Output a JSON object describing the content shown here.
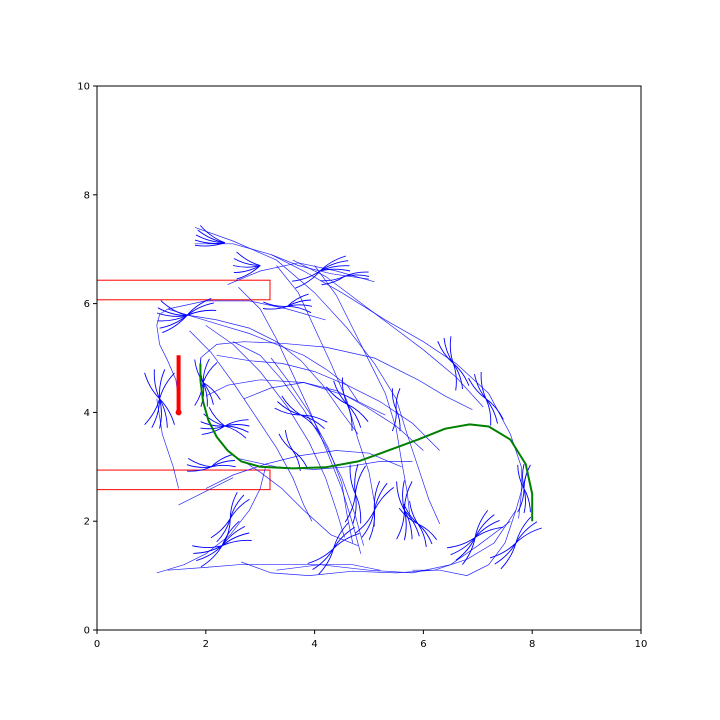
{
  "chart_data": {
    "type": "line",
    "title": "",
    "xlabel": "",
    "ylabel": "",
    "xlim": [
      0,
      10
    ],
    "ylim": [
      0,
      10
    ],
    "grid": false,
    "x_ticks": [
      0,
      2,
      4,
      6,
      8,
      10
    ],
    "y_ticks": [
      0,
      2,
      4,
      6,
      8,
      10
    ],
    "x_tick_labels": [
      "0",
      "2",
      "4",
      "6",
      "8",
      "10"
    ],
    "y_tick_labels": [
      "0",
      "2",
      "4",
      "6",
      "8",
      "10"
    ],
    "colors": {
      "tree": "#0000ff",
      "path": "#008000",
      "obstacles": "#ff0000",
      "start_marker": "#ff0000"
    },
    "obstacles": [
      {
        "x": [
          0,
          3.18
        ],
        "y": [
          6.07,
          6.43
        ]
      },
      {
        "x": [
          0,
          3.18
        ],
        "y": [
          2.58,
          2.94
        ]
      }
    ],
    "start_pose": {
      "x": 1.5,
      "y_from": 4.0,
      "y_to": 5.05
    },
    "goal_path": [
      [
        8.0,
        2.0
      ],
      [
        8.0,
        2.5
      ],
      [
        7.88,
        3.05
      ],
      [
        7.6,
        3.5
      ],
      [
        7.2,
        3.74
      ],
      [
        6.85,
        3.78
      ],
      [
        6.4,
        3.7
      ],
      [
        5.9,
        3.5
      ],
      [
        5.3,
        3.28
      ],
      [
        4.8,
        3.1
      ],
      [
        4.2,
        2.99
      ],
      [
        3.6,
        2.97
      ],
      [
        3.0,
        3.0
      ],
      [
        2.65,
        3.1
      ],
      [
        2.4,
        3.3
      ],
      [
        2.2,
        3.55
      ],
      [
        2.05,
        3.85
      ],
      [
        1.95,
        4.2
      ],
      [
        1.9,
        4.6
      ],
      [
        1.9,
        4.9
      ]
    ],
    "tree_edges": [
      [
        [
          1.5,
          4.0
        ],
        [
          1.5,
          4.2
        ],
        [
          1.45,
          4.6
        ],
        [
          1.3,
          4.95
        ],
        [
          1.15,
          5.25
        ],
        [
          1.1,
          5.6
        ],
        [
          1.15,
          5.8
        ],
        [
          1.3,
          5.9
        ]
      ],
      [
        [
          1.3,
          5.9
        ],
        [
          1.8,
          5.75
        ],
        [
          2.3,
          5.6
        ],
        [
          2.8,
          5.45
        ],
        [
          3.3,
          5.25
        ],
        [
          3.8,
          5.05
        ],
        [
          4.2,
          4.8
        ],
        [
          4.6,
          4.5
        ],
        [
          4.8,
          4.2
        ]
      ],
      [
        [
          1.3,
          5.9
        ],
        [
          2.0,
          6.05
        ],
        [
          2.8,
          6.05
        ],
        [
          3.5,
          5.9
        ],
        [
          4.2,
          5.7
        ]
      ],
      [
        [
          1.9,
          5.0
        ],
        [
          2.2,
          5.25
        ],
        [
          2.7,
          5.3
        ],
        [
          3.4,
          5.27
        ],
        [
          4.2,
          5.2
        ],
        [
          5.1,
          5.0
        ],
        [
          5.9,
          4.6
        ],
        [
          6.4,
          4.3
        ],
        [
          6.9,
          4.05
        ]
      ],
      [
        [
          2.0,
          4.3
        ],
        [
          2.4,
          4.5
        ],
        [
          3.0,
          4.6
        ],
        [
          3.8,
          4.55
        ],
        [
          4.6,
          4.3
        ],
        [
          5.3,
          3.95
        ]
      ],
      [
        [
          2.7,
          3.1
        ],
        [
          3.0,
          2.9
        ],
        [
          3.4,
          2.6
        ],
        [
          3.8,
          2.2
        ],
        [
          4.3,
          1.75
        ],
        [
          4.8,
          1.55
        ]
      ],
      [
        [
          1.1,
          4.25
        ],
        [
          1.2,
          3.6
        ],
        [
          1.4,
          3.0
        ],
        [
          1.5,
          2.6
        ]
      ],
      [
        [
          1.8,
          7.4
        ],
        [
          2.5,
          7.15
        ],
        [
          3.3,
          6.8
        ],
        [
          4.0,
          6.2
        ],
        [
          4.6,
          5.55
        ],
        [
          5.1,
          4.9
        ],
        [
          5.5,
          4.25
        ],
        [
          5.7,
          3.6
        ],
        [
          5.9,
          3.0
        ],
        [
          6.1,
          2.4
        ],
        [
          6.3,
          1.95
        ]
      ],
      [
        [
          1.8,
          7.1
        ],
        [
          2.5,
          7.1
        ],
        [
          3.2,
          6.9
        ],
        [
          3.8,
          6.6
        ],
        [
          4.5,
          6.2
        ],
        [
          5.3,
          5.7
        ],
        [
          6.0,
          5.3
        ],
        [
          6.6,
          4.9
        ],
        [
          7.2,
          4.35
        ],
        [
          7.6,
          3.6
        ],
        [
          7.8,
          3.0
        ],
        [
          7.8,
          2.5
        ],
        [
          7.75,
          2.05
        ]
      ],
      [
        [
          3.3,
          6.7
        ],
        [
          3.7,
          6.2
        ],
        [
          4.0,
          5.55
        ],
        [
          4.3,
          4.9
        ],
        [
          4.6,
          4.2
        ],
        [
          4.8,
          3.5
        ],
        [
          5.0,
          2.9
        ],
        [
          5.1,
          2.35
        ],
        [
          5.1,
          1.9
        ]
      ],
      [
        [
          4.0,
          6.7
        ],
        [
          4.4,
          6.15
        ],
        [
          4.7,
          5.55
        ],
        [
          5.0,
          4.95
        ],
        [
          5.3,
          4.35
        ],
        [
          5.5,
          3.7
        ],
        [
          5.6,
          3.1
        ],
        [
          5.7,
          2.55
        ],
        [
          5.75,
          2.1
        ]
      ],
      [
        [
          3.6,
          6.8
        ],
        [
          4.2,
          6.5
        ],
        [
          4.8,
          6.05
        ],
        [
          5.4,
          5.6
        ],
        [
          6.0,
          5.15
        ],
        [
          6.6,
          4.65
        ],
        [
          7.1,
          4.1
        ]
      ],
      [
        [
          1.7,
          5.5
        ],
        [
          2.1,
          5.1
        ],
        [
          2.5,
          4.55
        ],
        [
          2.9,
          3.95
        ],
        [
          3.3,
          3.35
        ],
        [
          3.6,
          2.8
        ],
        [
          3.8,
          2.3
        ],
        [
          3.95,
          2.0
        ]
      ],
      [
        [
          2.0,
          5.6
        ],
        [
          2.5,
          5.25
        ],
        [
          3.0,
          4.75
        ],
        [
          3.5,
          4.1
        ],
        [
          3.9,
          3.45
        ],
        [
          4.2,
          2.8
        ],
        [
          4.4,
          2.2
        ],
        [
          4.55,
          1.7
        ]
      ],
      [
        [
          2.5,
          5.3
        ],
        [
          3.0,
          5.05
        ],
        [
          3.4,
          4.6
        ],
        [
          3.8,
          4.05
        ],
        [
          4.2,
          3.4
        ],
        [
          4.5,
          2.8
        ],
        [
          4.75,
          2.1
        ],
        [
          4.9,
          1.55
        ]
      ],
      [
        [
          2.6,
          6.3
        ],
        [
          3.0,
          5.9
        ],
        [
          3.3,
          5.35
        ],
        [
          3.6,
          4.7
        ],
        [
          3.9,
          4.05
        ],
        [
          4.2,
          3.35
        ],
        [
          4.5,
          2.6
        ],
        [
          4.7,
          1.95
        ],
        [
          4.85,
          1.4
        ]
      ],
      [
        [
          2.7,
          4.25
        ],
        [
          3.2,
          4.45
        ],
        [
          3.8,
          4.55
        ],
        [
          4.4,
          4.4
        ],
        [
          4.95,
          4.1
        ],
        [
          5.5,
          3.75
        ],
        [
          6.0,
          3.3
        ]
      ],
      [
        [
          2.0,
          2.6
        ],
        [
          2.5,
          2.85
        ],
        [
          3.1,
          3.05
        ],
        [
          3.7,
          3.2
        ],
        [
          4.4,
          3.3
        ],
        [
          5.0,
          3.25
        ],
        [
          5.6,
          3.0
        ]
      ],
      [
        [
          1.1,
          1.05
        ],
        [
          1.6,
          1.2
        ],
        [
          2.0,
          1.4
        ],
        [
          2.45,
          1.75
        ],
        [
          2.8,
          2.2
        ],
        [
          3.0,
          2.6
        ],
        [
          3.1,
          3.0
        ]
      ],
      [
        [
          1.3,
          1.1
        ],
        [
          2.0,
          1.15
        ],
        [
          2.6,
          1.2
        ],
        [
          3.3,
          1.2
        ],
        [
          4.0,
          1.2
        ],
        [
          4.7,
          1.2
        ],
        [
          5.2,
          1.1
        ]
      ],
      [
        [
          2.65,
          1.25
        ],
        [
          3.2,
          1.05
        ],
        [
          3.9,
          1.0
        ],
        [
          4.7,
          1.08
        ],
        [
          5.5,
          1.05
        ],
        [
          6.2,
          1.1
        ],
        [
          6.8,
          1.3
        ],
        [
          7.3,
          1.6
        ],
        [
          7.7,
          2.2
        ],
        [
          7.9,
          2.9
        ]
      ],
      [
        [
          3.3,
          1.1
        ],
        [
          4.1,
          1.2
        ],
        [
          5.0,
          1.1
        ],
        [
          5.8,
          1.05
        ],
        [
          6.5,
          1.2
        ],
        [
          7.0,
          1.55
        ],
        [
          7.6,
          2.0
        ]
      ],
      [
        [
          5.8,
          1.1
        ],
        [
          6.3,
          1.1
        ],
        [
          6.8,
          1.0
        ],
        [
          7.2,
          1.2
        ],
        [
          7.5,
          1.6
        ],
        [
          7.7,
          2.2
        ]
      ],
      [
        [
          3.2,
          5.0
        ],
        [
          3.5,
          4.6
        ],
        [
          3.9,
          4.0
        ],
        [
          4.25,
          3.35
        ],
        [
          4.5,
          2.7
        ],
        [
          4.6,
          2.1
        ],
        [
          4.7,
          1.6
        ]
      ],
      [
        [
          2.2,
          5.05
        ],
        [
          2.8,
          4.95
        ],
        [
          3.4,
          4.9
        ],
        [
          4.0,
          4.75
        ],
        [
          4.6,
          4.5
        ],
        [
          5.2,
          4.2
        ],
        [
          5.8,
          3.8
        ],
        [
          6.3,
          3.3
        ]
      ],
      [
        [
          1.6,
          5.8
        ],
        [
          2.2,
          5.7
        ],
        [
          2.8,
          5.55
        ],
        [
          3.3,
          5.3
        ],
        [
          3.75,
          4.95
        ],
        [
          4.15,
          4.5
        ],
        [
          4.5,
          4.0
        ],
        [
          4.8,
          3.6
        ]
      ],
      [
        [
          2.6,
          3.15
        ],
        [
          3.3,
          3.0
        ],
        [
          4.0,
          2.95
        ],
        [
          4.6,
          3.0
        ],
        [
          5.2,
          3.1
        ],
        [
          5.8,
          3.1
        ]
      ],
      [
        [
          1.5,
          2.3
        ],
        [
          2.0,
          2.55
        ],
        [
          2.5,
          2.8
        ]
      ],
      [
        [
          3.2,
          6.9
        ],
        [
          3.7,
          6.7
        ],
        [
          4.3,
          6.55
        ],
        [
          5.0,
          6.45
        ]
      ],
      [
        [
          2.4,
          6.35
        ],
        [
          3.0,
          6.6
        ],
        [
          3.7,
          6.75
        ],
        [
          4.4,
          6.6
        ],
        [
          5.1,
          6.4
        ]
      ]
    ],
    "branch_fans": [
      {
        "cx": 2.35,
        "cy": 7.12,
        "len": 0.55,
        "angles": [
          145,
          155,
          165,
          175,
          185
        ]
      },
      {
        "cx": 3.0,
        "cy": 6.7,
        "len": 0.5,
        "angles": [
          150,
          165,
          180,
          195,
          210
        ]
      },
      {
        "cx": 4.1,
        "cy": 6.6,
        "len": 0.55,
        "angles": [
          0,
          10,
          20,
          30,
          200,
          215
        ]
      },
      {
        "cx": 1.65,
        "cy": 5.78,
        "len": 0.55,
        "angles": [
          150,
          165,
          175,
          190,
          205,
          215,
          10,
          25,
          35
        ]
      },
      {
        "cx": 1.15,
        "cy": 4.25,
        "len": 0.55,
        "angles": [
          60,
          80,
          100,
          120,
          240,
          255,
          270,
          285,
          300
        ]
      },
      {
        "cx": 1.95,
        "cy": 4.55,
        "len": 0.45,
        "angles": [
          55,
          75,
          95,
          110,
          250,
          265,
          280,
          295,
          315
        ]
      },
      {
        "cx": 2.35,
        "cy": 3.75,
        "len": 0.45,
        "angles": [
          130,
          150,
          170,
          185,
          200,
          330,
          345,
          0,
          15
        ]
      },
      {
        "cx": 2.1,
        "cy": 3.0,
        "len": 0.45,
        "angles": [
          160,
          175,
          190,
          0,
          15,
          30
        ]
      },
      {
        "cx": 2.3,
        "cy": 1.55,
        "len": 0.55,
        "angles": [
          180,
          195,
          210,
          225,
          10,
          25,
          40,
          55
        ]
      },
      {
        "cx": 2.45,
        "cy": 2.05,
        "len": 0.5,
        "angles": [
          45,
          60,
          75,
          225,
          240,
          255
        ]
      },
      {
        "cx": 3.5,
        "cy": 5.95,
        "len": 0.45,
        "angles": [
          170,
          185,
          0,
          15,
          30,
          345
        ]
      },
      {
        "cx": 3.75,
        "cy": 3.95,
        "len": 0.5,
        "angles": [
          135,
          150,
          165,
          315,
          330,
          345
        ]
      },
      {
        "cx": 4.6,
        "cy": 4.15,
        "len": 0.5,
        "angles": [
          100,
          120,
          140,
          280,
          300,
          320
        ]
      },
      {
        "cx": 4.75,
        "cy": 2.5,
        "len": 0.55,
        "angles": [
          70,
          85,
          100,
          250,
          265,
          280
        ]
      },
      {
        "cx": 4.35,
        "cy": 1.5,
        "len": 0.55,
        "angles": [
          30,
          45,
          60,
          210,
          225,
          240
        ]
      },
      {
        "cx": 5.1,
        "cy": 2.2,
        "len": 0.55,
        "angles": [
          50,
          65,
          80,
          230,
          245,
          260
        ]
      },
      {
        "cx": 5.65,
        "cy": 2.2,
        "len": 0.55,
        "angles": [
          75,
          90,
          105,
          255,
          270,
          285,
          300
        ]
      },
      {
        "cx": 5.9,
        "cy": 1.95,
        "len": 0.45,
        "angles": [
          110,
          125,
          140,
          290,
          305,
          320
        ]
      },
      {
        "cx": 6.95,
        "cy": 1.7,
        "len": 0.55,
        "angles": [
          20,
          35,
          50,
          65,
          200,
          215,
          230,
          245
        ]
      },
      {
        "cx": 7.7,
        "cy": 1.6,
        "len": 0.55,
        "angles": [
          30,
          45,
          60,
          210,
          225,
          240
        ]
      },
      {
        "cx": 7.85,
        "cy": 2.6,
        "len": 0.45,
        "angles": [
          75,
          90,
          105,
          255,
          270,
          285
        ]
      },
      {
        "cx": 7.15,
        "cy": 4.25,
        "len": 0.5,
        "angles": [
          100,
          115,
          130,
          280,
          295,
          310
        ]
      },
      {
        "cx": 6.55,
        "cy": 4.9,
        "len": 0.5,
        "angles": [
          95,
          110,
          125,
          275,
          290,
          305
        ]
      },
      {
        "cx": 4.55,
        "cy": 6.5,
        "len": 0.45,
        "angles": [
          0,
          10,
          190,
          200
        ]
      },
      {
        "cx": 3.6,
        "cy": 3.3,
        "len": 0.4,
        "angles": [
          110,
          130,
          290,
          310
        ]
      },
      {
        "cx": 5.5,
        "cy": 4.05,
        "len": 0.4,
        "angles": [
          80,
          100,
          260,
          280
        ]
      }
    ]
  }
}
